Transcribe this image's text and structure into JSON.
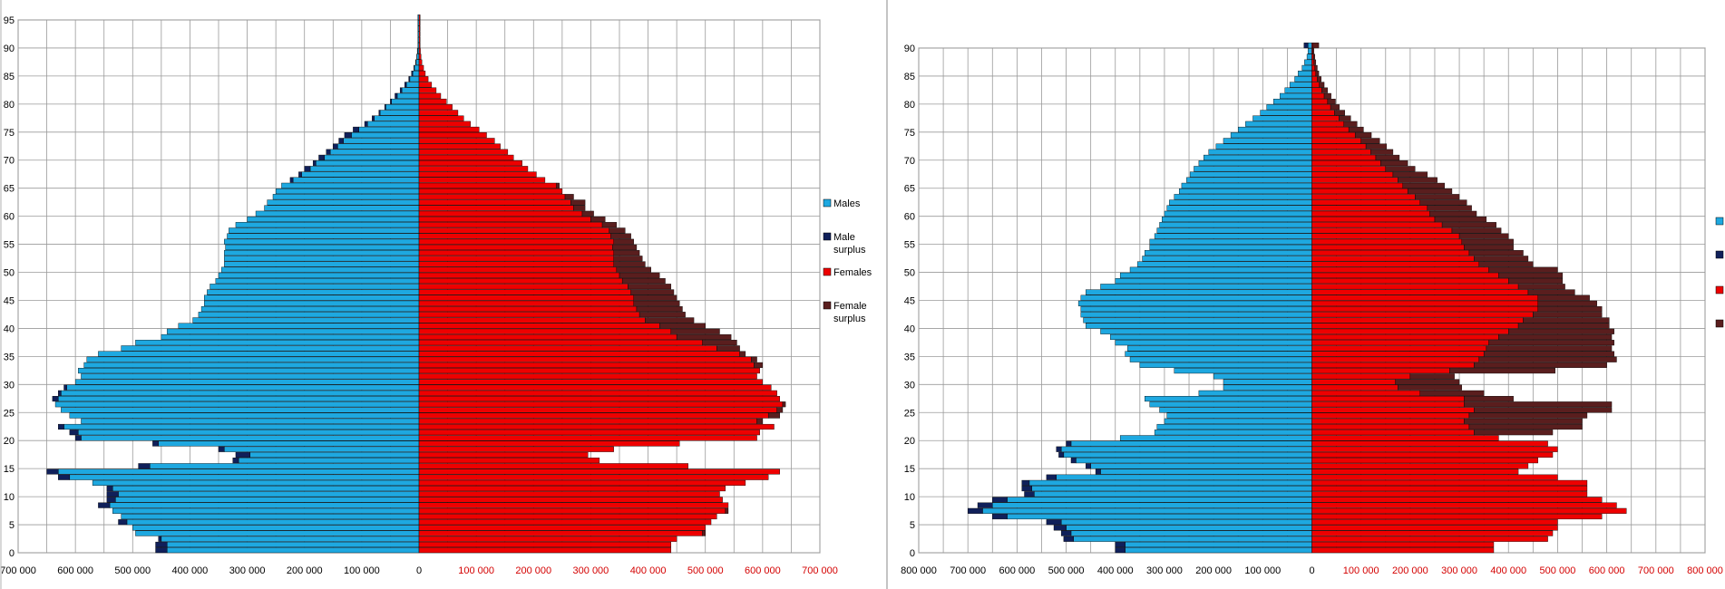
{
  "chart_data": [
    {
      "type": "bar",
      "subtype": "population-pyramid",
      "title": "",
      "xlabel": "",
      "ylabel": "",
      "xlim": [
        -700000,
        700000
      ],
      "ylim": [
        0,
        95
      ],
      "grid": true,
      "legend_position": "right",
      "colors": {
        "males": "#1EA8E0",
        "male_surplus": "#10205A",
        "females": "#EE0000",
        "female_surplus": "#5A1E1E"
      },
      "y_ticks": [
        0,
        5,
        10,
        15,
        20,
        25,
        30,
        35,
        40,
        45,
        50,
        55,
        60,
        65,
        70,
        75,
        80,
        85,
        90,
        95
      ],
      "x_ticks_left": [
        "700 000",
        "600 000",
        "500 000",
        "400 000",
        "300 000",
        "200 000",
        "100 000",
        "0"
      ],
      "x_ticks_right": [
        "100 000",
        "200 000",
        "300 000",
        "400 000",
        "500 000",
        "600 000",
        "700 000"
      ],
      "legend": [
        "Males",
        "Male surplus",
        "Females",
        "Female surplus"
      ],
      "ages": [
        0,
        1,
        2,
        3,
        4,
        5,
        6,
        7,
        8,
        9,
        10,
        11,
        12,
        13,
        14,
        15,
        16,
        17,
        18,
        19,
        20,
        21,
        22,
        23,
        24,
        25,
        26,
        27,
        28,
        29,
        30,
        31,
        32,
        33,
        34,
        35,
        36,
        37,
        38,
        39,
        40,
        41,
        42,
        43,
        44,
        45,
        46,
        47,
        48,
        49,
        50,
        51,
        52,
        53,
        54,
        55,
        56,
        57,
        58,
        59,
        60,
        61,
        62,
        63,
        64,
        65,
        66,
        67,
        68,
        69,
        70,
        71,
        72,
        73,
        74,
        75,
        76,
        77,
        78,
        79,
        80,
        81,
        82,
        83,
        84,
        85,
        86,
        87,
        88,
        89,
        90,
        91,
        92,
        93,
        94,
        95
      ],
      "males": [
        460000,
        460000,
        455000,
        495000,
        500000,
        525000,
        520000,
        535000,
        560000,
        545000,
        545000,
        545000,
        570000,
        630000,
        650000,
        490000,
        325000,
        320000,
        350000,
        465000,
        600000,
        610000,
        630000,
        590000,
        610000,
        625000,
        635000,
        640000,
        630000,
        620000,
        600000,
        590000,
        595000,
        585000,
        580000,
        560000,
        520000,
        495000,
        450000,
        440000,
        420000,
        395000,
        385000,
        380000,
        375000,
        375000,
        370000,
        365000,
        355000,
        350000,
        345000,
        340000,
        340000,
        340000,
        338000,
        340000,
        335000,
        332000,
        320000,
        300000,
        285000,
        270000,
        265000,
        255000,
        250000,
        240000,
        225000,
        210000,
        200000,
        185000,
        175000,
        162000,
        150000,
        140000,
        130000,
        115000,
        95000,
        82000,
        70000,
        60000,
        50000,
        42000,
        33000,
        25000,
        18000,
        13000,
        9000,
        6000,
        4000,
        3000,
        2000,
        2000,
        2000,
        2000,
        2000,
        2000
      ],
      "females": [
        440000,
        440000,
        450000,
        500000,
        500000,
        510000,
        520000,
        540000,
        540000,
        530000,
        525000,
        535000,
        570000,
        610000,
        630000,
        470000,
        315000,
        295000,
        340000,
        455000,
        590000,
        595000,
        620000,
        600000,
        630000,
        635000,
        640000,
        630000,
        625000,
        615000,
        600000,
        590000,
        595000,
        600000,
        590000,
        570000,
        560000,
        555000,
        545000,
        525000,
        500000,
        480000,
        465000,
        460000,
        455000,
        450000,
        445000,
        440000,
        430000,
        420000,
        405000,
        395000,
        390000,
        385000,
        380000,
        375000,
        370000,
        360000,
        345000,
        325000,
        305000,
        290000,
        290000,
        270000,
        250000,
        245000,
        220000,
        205000,
        190000,
        180000,
        165000,
        155000,
        142000,
        132000,
        118000,
        105000,
        90000,
        78000,
        68000,
        58000,
        48000,
        38000,
        30000,
        22000,
        16000,
        11000,
        8000,
        5000,
        3500,
        2500,
        2000,
        2000,
        2000,
        2000,
        2000,
        2000
      ]
    },
    {
      "type": "bar",
      "subtype": "population-pyramid",
      "title": "",
      "xlabel": "",
      "ylabel": "",
      "xlim": [
        -800000,
        800000
      ],
      "ylim": [
        0,
        90
      ],
      "grid": true,
      "legend_position": "right",
      "colors": {
        "males": "#1EA8E0",
        "male_surplus": "#10205A",
        "females": "#EE0000",
        "female_surplus": "#5A1E1E"
      },
      "y_ticks": [
        0,
        5,
        10,
        15,
        20,
        25,
        30,
        35,
        40,
        45,
        50,
        55,
        60,
        65,
        70,
        75,
        80,
        85,
        90
      ],
      "x_ticks_left": [
        "800 000",
        "700 000",
        "600 000",
        "500 000",
        "400 000",
        "300 000",
        "200 000",
        "100 000",
        "0"
      ],
      "x_ticks_right": [
        "100 000",
        "200 000",
        "300 000",
        "400 000",
        "500 000",
        "600 000",
        "700 000",
        "800 000"
      ],
      "ages": [
        0,
        1,
        2,
        3,
        4,
        5,
        6,
        7,
        8,
        9,
        10,
        11,
        12,
        13,
        14,
        15,
        16,
        17,
        18,
        19,
        20,
        21,
        22,
        23,
        24,
        25,
        26,
        27,
        28,
        29,
        30,
        31,
        32,
        33,
        34,
        35,
        36,
        37,
        38,
        39,
        40,
        41,
        42,
        43,
        44,
        45,
        46,
        47,
        48,
        49,
        50,
        51,
        52,
        53,
        54,
        55,
        56,
        57,
        58,
        59,
        60,
        61,
        62,
        63,
        64,
        65,
        66,
        67,
        68,
        69,
        70,
        71,
        72,
        73,
        74,
        75,
        76,
        77,
        78,
        79,
        80,
        81,
        82,
        83,
        84,
        85,
        86,
        87,
        88,
        89,
        90
      ],
      "males": [
        380000,
        380000,
        485000,
        490000,
        500000,
        510000,
        620000,
        670000,
        650000,
        620000,
        565000,
        570000,
        575000,
        520000,
        430000,
        450000,
        480000,
        505000,
        510000,
        490000,
        390000,
        320000,
        315000,
        300000,
        295000,
        310000,
        330000,
        340000,
        230000,
        180000,
        180000,
        200000,
        280000,
        350000,
        370000,
        380000,
        375000,
        400000,
        410000,
        430000,
        460000,
        465000,
        470000,
        470000,
        475000,
        470000,
        460000,
        430000,
        400000,
        390000,
        370000,
        355000,
        345000,
        340000,
        330000,
        330000,
        320000,
        315000,
        310000,
        305000,
        300000,
        295000,
        290000,
        280000,
        270000,
        265000,
        255000,
        248000,
        240000,
        230000,
        220000,
        210000,
        195000,
        180000,
        165000,
        150000,
        135000,
        120000,
        105000,
        92000,
        78000,
        65000,
        55000,
        45000,
        35000,
        28000,
        20000,
        15000,
        10000,
        8000,
        8000
      ],
      "females": [
        370000,
        370000,
        480000,
        490000,
        500000,
        500000,
        590000,
        640000,
        620000,
        590000,
        560000,
        560000,
        560000,
        500000,
        420000,
        440000,
        460000,
        490000,
        500000,
        480000,
        380000,
        330000,
        320000,
        310000,
        320000,
        330000,
        310000,
        310000,
        220000,
        175000,
        170000,
        200000,
        280000,
        330000,
        340000,
        350000,
        355000,
        360000,
        380000,
        400000,
        420000,
        430000,
        450000,
        460000,
        460000,
        460000,
        440000,
        420000,
        400000,
        380000,
        360000,
        340000,
        330000,
        320000,
        310000,
        305000,
        300000,
        285000,
        265000,
        250000,
        240000,
        235000,
        220000,
        210000,
        195000,
        185000,
        175000,
        165000,
        150000,
        140000,
        130000,
        120000,
        110000,
        100000,
        88000,
        75000,
        65000,
        55000,
        46000,
        38000,
        32000,
        25000,
        20000,
        15000,
        11000,
        8000,
        6000,
        4000,
        3000,
        2000,
        2000
      ],
      "male_surplus": [
        20000,
        20000,
        20000,
        20000,
        25000,
        30000,
        30000,
        30000,
        30000,
        30000,
        20000,
        20000,
        15000,
        20000,
        10000,
        10000,
        10000,
        10000,
        10000,
        10000,
        0,
        0,
        0,
        0,
        0,
        0,
        0,
        0,
        0,
        0,
        0,
        0,
        0,
        0,
        0,
        0,
        0,
        0,
        0,
        0,
        0,
        0,
        0,
        0,
        0,
        0,
        0,
        0,
        0,
        0,
        0,
        0,
        0,
        0,
        0,
        0,
        0,
        0,
        0,
        0,
        0,
        0,
        0,
        0,
        0,
        0,
        0,
        0,
        0,
        0,
        0,
        0,
        0,
        0,
        0,
        0,
        0,
        0,
        0,
        0,
        0,
        0,
        0,
        0,
        0,
        0,
        0,
        0,
        0,
        0,
        8000
      ],
      "female_surplus": [
        0,
        0,
        0,
        0,
        0,
        0,
        0,
        0,
        0,
        0,
        0,
        0,
        0,
        0,
        0,
        0,
        0,
        0,
        0,
        0,
        0,
        160000,
        230000,
        240000,
        240000,
        280000,
        300000,
        100000,
        130000,
        130000,
        130000,
        90000,
        215000,
        270000,
        280000,
        265000,
        255000,
        255000,
        230000,
        215000,
        185000,
        175000,
        140000,
        130000,
        120000,
        105000,
        95000,
        95000,
        110000,
        130000,
        140000,
        110000,
        110000,
        110000,
        100000,
        105000,
        100000,
        100000,
        110000,
        105000,
        95000,
        90000,
        95000,
        90000,
        90000,
        85000,
        80000,
        70000,
        60000,
        55000,
        48000,
        45000,
        42000,
        38000,
        33000,
        30000,
        27000,
        24000,
        21000,
        18000,
        16000,
        14000,
        12000,
        10000,
        8000,
        6000,
        5000,
        4000,
        3000,
        2000,
        12000
      ]
    }
  ]
}
